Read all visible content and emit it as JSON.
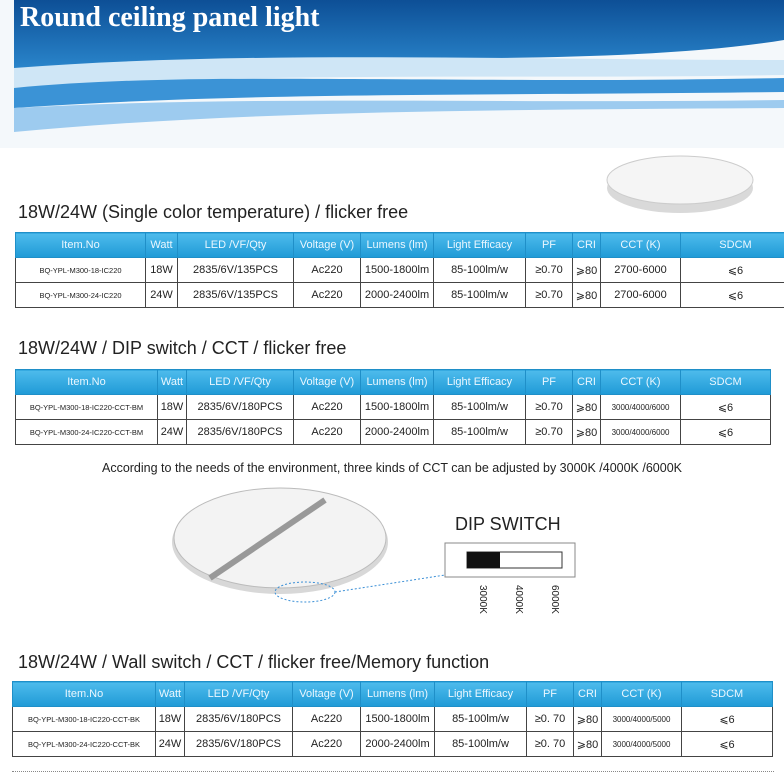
{
  "header": {
    "title": "Round ceiling panel light"
  },
  "sections": [
    {
      "heading": "18W/24W  (Single color temperature) / flicker free",
      "table": {
        "columns": [
          "Item.No",
          "Watt",
          "LED /VF/Qty",
          "Voltage (V)",
          "Lumens (lm)",
          "Light Efficacy",
          "PF",
          "CRI",
          "CCT (K)",
          "SDCM"
        ],
        "rows": [
          [
            "BQ-YPL-M300-18-IC220",
            "18W",
            "2835/6V/135PCS",
            "Ac220",
            "1500-1800lm",
            "85-100lm/w",
            "≥0.70",
            "⩾80",
            "2700-6000",
            "⩽6"
          ],
          [
            "BQ-YPL-M300-24-IC220",
            "24W",
            "2835/6V/135PCS",
            "Ac220",
            "2000-2400lm",
            "85-100lm/w",
            "≥0.70",
            "⩾80",
            "2700-6000",
            "⩽6"
          ]
        ]
      }
    },
    {
      "heading": "18W/24W  / DIP switch / CCT / flicker free",
      "table": {
        "columns": [
          "Item.No",
          "Watt",
          "LED /VF/Qty",
          "Voltage (V)",
          "Lumens (lm)",
          "Light Efficacy",
          "PF",
          "CRI",
          "CCT (K)",
          "SDCM"
        ],
        "rows": [
          [
            "BQ-YPL-M300-18-IC220-CCT-BM",
            "18W",
            "2835/6V/180PCS",
            "Ac220",
            "1500-1800lm",
            "85-100lm/w",
            "≥0.70",
            "⩾80",
            "3000/4000/6000",
            "⩽6"
          ],
          [
            "BQ-YPL-M300-24-IC220-CCT-BM",
            "24W",
            "2835/6V/180PCS",
            "Ac220",
            "2000-2400lm",
            "85-100lm/w",
            "≥0.70",
            "⩾80",
            "3000/4000/6000",
            "⩽6"
          ]
        ]
      }
    },
    {
      "heading": "18W/24W / Wall switch / CCT / flicker free/Memory function",
      "table": {
        "columns": [
          "Item.No",
          "Watt",
          "LED /VF/Qty",
          "Voltage (V)",
          "Lumens (lm)",
          "Light Efficacy",
          "PF",
          "CRI",
          "CCT (K)",
          "SDCM"
        ],
        "rows": [
          [
            "BQ-YPL-M300-18-IC220-CCT-BK",
            "18W",
            "2835/6V/180PCS",
            "Ac220",
            "1500-1800lm",
            "85-100lm/w",
            "≥0. 70",
            "⩾80",
            "3000/4000/5000",
            "⩽6"
          ],
          [
            "BQ-YPL-M300-24-IC220-CCT-BK",
            "24W",
            "2835/6V/180PCS",
            "Ac220",
            "2000-2400lm",
            "85-100lm/w",
            "≥0. 70",
            "⩾80",
            "3000/4000/5000",
            "⩽6"
          ]
        ]
      }
    }
  ],
  "note": "According to the needs of the environment, three kinds of CCT can be adjusted by 3000K /4000K /6000K",
  "dip_switch": {
    "title": "DIP SWITCH",
    "labels": [
      "3000K",
      "4000K",
      "6000K"
    ]
  }
}
